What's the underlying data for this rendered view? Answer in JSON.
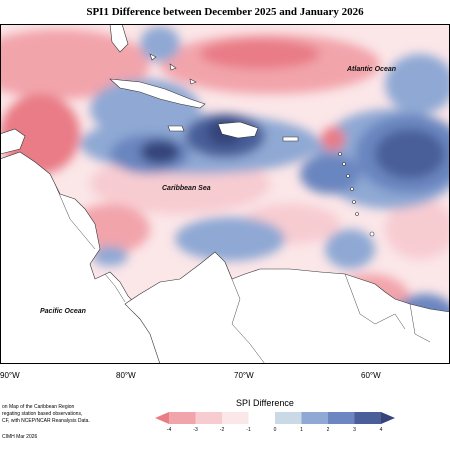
{
  "title": "SPI1 Difference between December 2025 and January 2026",
  "labels": {
    "atlantic": "Atlantic Ocean",
    "caribbean": "Caribbean Sea",
    "pacific": "Pacific Ocean"
  },
  "longitudes": [
    "90°W",
    "80°W",
    "70°W",
    "60°W"
  ],
  "caption": [
    "on Map of the Caribbean Region",
    "regating station based observations,",
    "CF, with NCEP/NCAR Reanalysis Data."
  ],
  "credit": "CIMH Mar 2026",
  "legend": {
    "title": "SPI Difference",
    "ticks": [
      "-4",
      "-3",
      "-2",
      "-1",
      "0",
      "1",
      "2",
      "3",
      "4"
    ],
    "colors": [
      "#e97c86",
      "#f2a4ab",
      "#f7ccd1",
      "#fbe6e8",
      "#ffffff",
      "#c9d9e6",
      "#8fa9d4",
      "#6b86c0",
      "#4a5e9a",
      "#36447a"
    ]
  }
}
